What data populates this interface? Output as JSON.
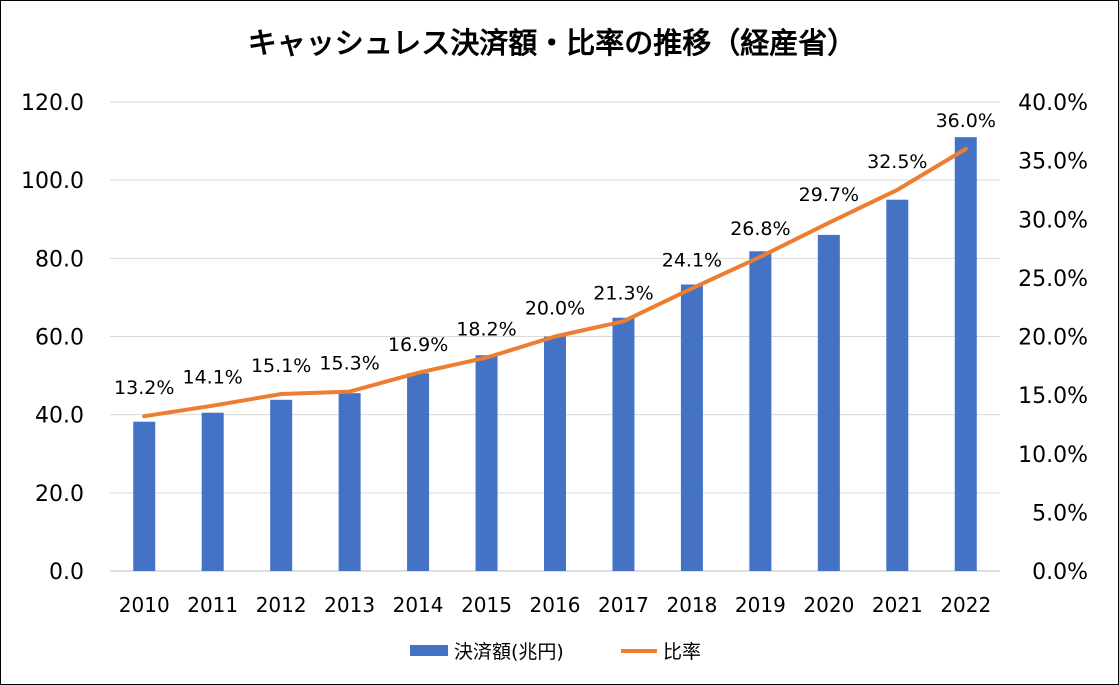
{
  "chart_data": {
    "type": "bar",
    "title": "キャッシュレス決済額・比率の推移（経産省）",
    "categories": [
      "2010",
      "2011",
      "2012",
      "2013",
      "2014",
      "2015",
      "2016",
      "2017",
      "2018",
      "2019",
      "2020",
      "2021",
      "2022"
    ],
    "series": [
      {
        "name": "決済額(兆円)",
        "type": "bar",
        "axis": "left",
        "color": "#4472C4",
        "values": [
          38.2,
          40.5,
          43.8,
          45.5,
          50.6,
          55.2,
          60.0,
          64.8,
          73.3,
          81.8,
          86.0,
          95.0,
          111.0
        ]
      },
      {
        "name": "比率",
        "type": "line",
        "axis": "right",
        "color": "#ED7D31",
        "values": [
          13.2,
          14.1,
          15.1,
          15.3,
          16.9,
          18.2,
          20.0,
          21.3,
          24.1,
          26.8,
          29.7,
          32.5,
          36.0
        ],
        "data_labels": [
          "13.2%",
          "14.1%",
          "15.1%",
          "15.3%",
          "16.9%",
          "18.2%",
          "20.0%",
          "21.3%",
          "24.1%",
          "26.8%",
          "29.7%",
          "32.5%",
          "36.0%"
        ]
      }
    ],
    "y_left": {
      "lim": [
        0,
        120
      ],
      "tick_values": [
        0,
        20,
        40,
        60,
        80,
        100,
        120
      ],
      "tick_labels": [
        "0.0",
        "20.0",
        "40.0",
        "60.0",
        "80.0",
        "100.0",
        "120.0"
      ]
    },
    "y_right": {
      "lim": [
        0,
        40
      ],
      "tick_values": [
        0,
        5,
        10,
        15,
        20,
        25,
        30,
        35,
        40
      ],
      "tick_labels": [
        "0.0%",
        "5.0%",
        "10.0%",
        "15.0%",
        "20.0%",
        "25.0%",
        "30.0%",
        "35.0%",
        "40.0%"
      ]
    },
    "grid": true,
    "legend_position": "bottom"
  }
}
